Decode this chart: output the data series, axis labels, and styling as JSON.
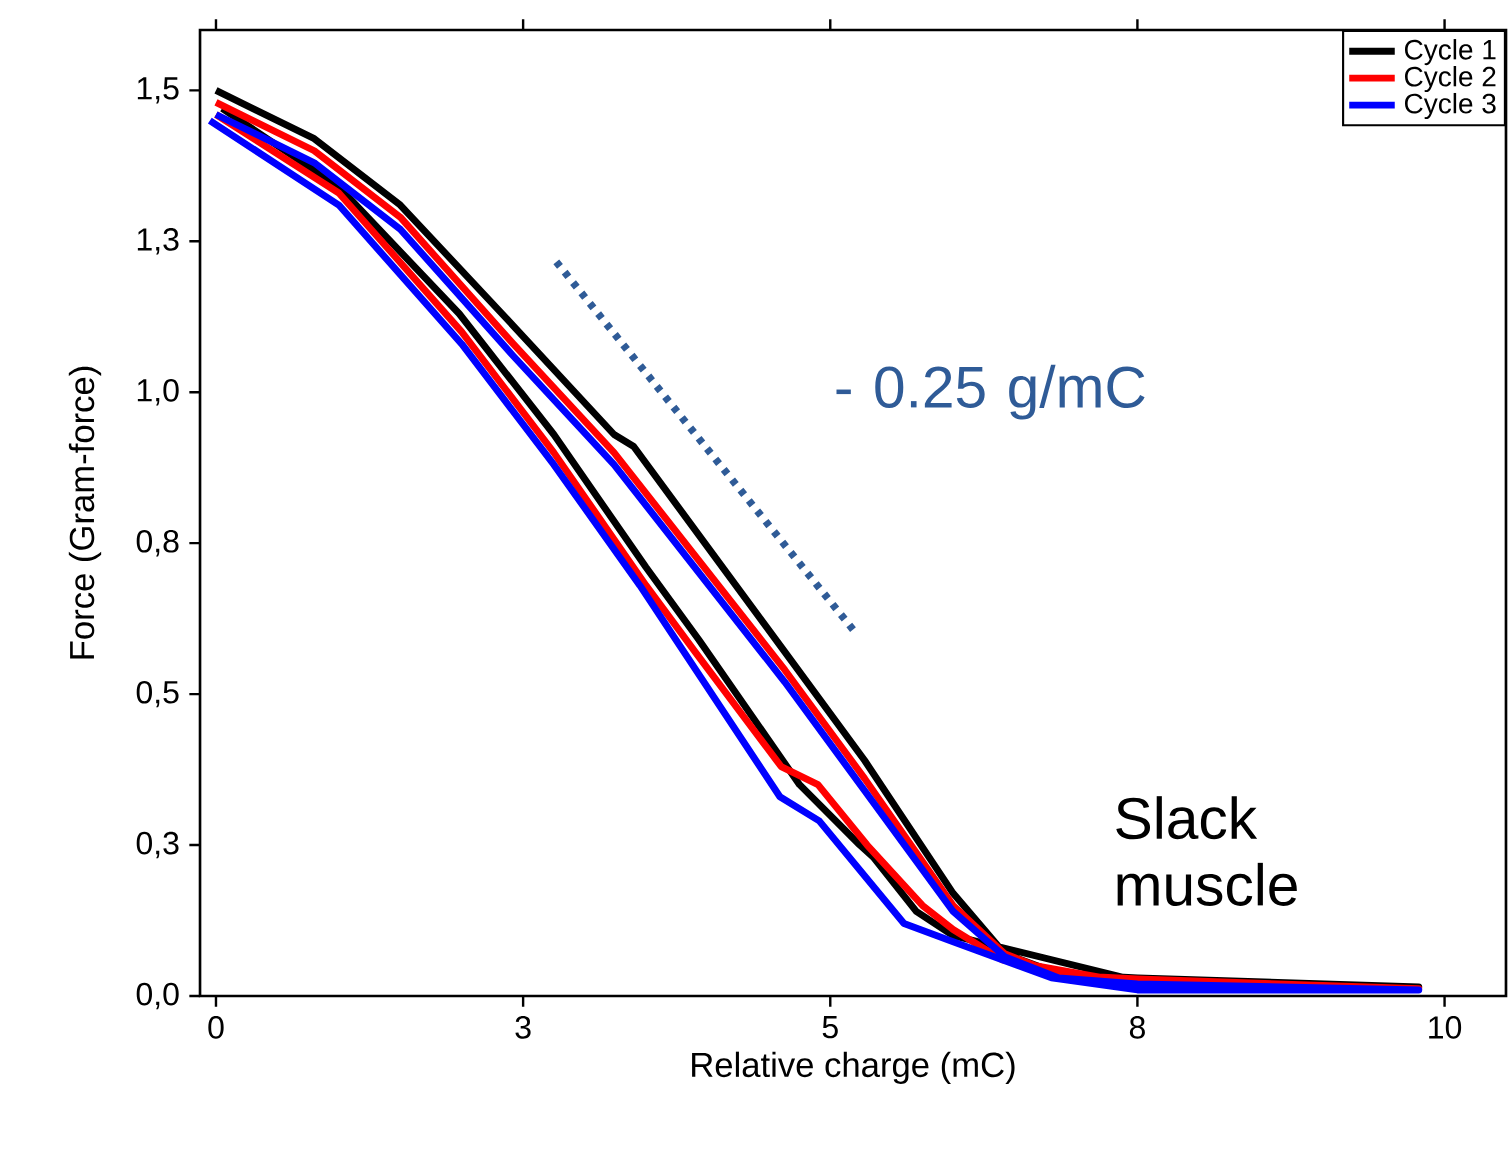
{
  "chart_data": {
    "type": "line",
    "xlabel": "Relative charge (mC)",
    "ylabel": "Force (Gram-force)",
    "xlim": [
      -0.13,
      10.5
    ],
    "ylim": [
      0,
      1.6
    ],
    "xticks": [
      0,
      {
        "value": 2.5,
        "label": "3"
      },
      5,
      {
        "value": 7.5,
        "label": "8"
      },
      10
    ],
    "yticks": [
      {
        "value": 0,
        "label": "0,0"
      },
      {
        "value": 0.25,
        "label": "0,3"
      },
      {
        "value": 0.5,
        "label": "0,5"
      },
      {
        "value": 0.75,
        "label": "0,8"
      },
      {
        "value": 1.0,
        "label": "1,0"
      },
      {
        "value": 1.25,
        "label": "1,3"
      },
      {
        "value": 1.5,
        "label": "1,5"
      }
    ],
    "legend": "top right",
    "grid": false,
    "marker": "none",
    "annotations": [
      "- 0.25 g/mC",
      "Slack muscle"
    ],
    "series": [
      {
        "name": "Cycle 1",
        "color": "#000000",
        "line_style": "solid",
        "x": [
          0.05,
          1.0,
          1.98,
          2.75,
          3.5,
          3.93,
          4.75,
          5.24,
          5.35,
          5.7,
          6.0,
          7.5,
          9.79,
          7.5,
          6.86,
          6.42,
          6.0,
          5.28,
          4.63,
          3.4,
          3.24,
          2.42,
          1.5,
          0.8,
          0
        ],
        "values": [
          1.47,
          1.34,
          1.13,
          0.93,
          0.71,
          0.59,
          0.35,
          0.25,
          0.23,
          0.14,
          0.1,
          0.025,
          0.015,
          0.03,
          0.037,
          0.07,
          0.17,
          0.39,
          0.57,
          0.91,
          0.93,
          1.11,
          1.31,
          1.42,
          1.5
        ]
      },
      {
        "name": "Cycle 2",
        "color": "#ff0000",
        "line_style": "solid",
        "x": [
          0,
          1.0,
          2.0,
          2.75,
          3.5,
          3.9,
          4.6,
          4.9,
          5.3,
          5.75,
          6.0,
          6.4,
          7.5,
          9.79,
          7.5,
          6.86,
          6.42,
          6.0,
          5.28,
          4.63,
          3.24,
          2.42,
          1.5,
          0.8,
          0
        ],
        "values": [
          1.46,
          1.33,
          1.1,
          0.9,
          0.68,
          0.57,
          0.38,
          0.35,
          0.25,
          0.15,
          0.11,
          0.06,
          0.02,
          0.012,
          0.028,
          0.035,
          0.07,
          0.15,
          0.36,
          0.54,
          0.9,
          1.08,
          1.29,
          1.4,
          1.48
        ]
      },
      {
        "name": "Cycle 3",
        "color": "#0000ff",
        "line_style": "solid",
        "x": [
          -0.05,
          1.0,
          2.0,
          2.75,
          3.45,
          4.59,
          4.91,
          5.6,
          6.0,
          6.8,
          7.5,
          9.79,
          7.5,
          6.86,
          6.42,
          6.0,
          5.28,
          4.63,
          3.24,
          2.42,
          1.5,
          0.8,
          0
        ],
        "values": [
          1.45,
          1.31,
          1.08,
          0.88,
          0.68,
          0.33,
          0.29,
          0.12,
          0.09,
          0.03,
          0.01,
          0.01,
          0.02,
          0.03,
          0.065,
          0.14,
          0.34,
          0.52,
          0.88,
          1.06,
          1.27,
          1.38,
          1.46
        ]
      },
      {
        "color": "#2f5b97",
        "line_style": "dotted",
        "x": [
          2.77,
          5.22
        ],
        "values": [
          1.216,
          0.598
        ]
      }
    ]
  }
}
